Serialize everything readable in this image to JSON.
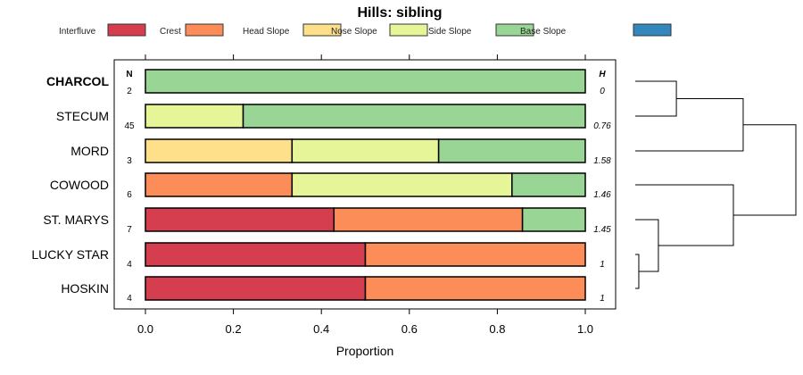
{
  "chart_data": {
    "type": "bar",
    "stacked": true,
    "orientation": "horizontal",
    "title": "Hills: sibling",
    "xlabel": "Proportion",
    "ylabel": "",
    "xlim": [
      0,
      1
    ],
    "x_ticks": [
      "0.0",
      "0.2",
      "0.4",
      "0.6",
      "0.8",
      "1.0"
    ],
    "x_tick_values": [
      0,
      0.2,
      0.4,
      0.6,
      0.8,
      1.0
    ],
    "legend_position": "top",
    "legend": [
      {
        "name": "Interfluve",
        "color": "#D53E4F"
      },
      {
        "name": "Crest",
        "color": "#FC8D59"
      },
      {
        "name": "Head Slope",
        "color": "#FEE08B"
      },
      {
        "name": "Nose Slope",
        "color": "#E6F598"
      },
      {
        "name": "Side Slope",
        "color": "#99D594"
      },
      {
        "name": "Base Slope",
        "color": "#3288BD"
      }
    ],
    "n_header": "N",
    "h_header": "H",
    "categories": [
      "CHARCOL",
      "STECUM",
      "MORD",
      "COWOOD",
      "ST. MARYS",
      "LUCKY STAR",
      "HOSKIN"
    ],
    "highlighted_category": "CHARCOL",
    "n": [
      "2",
      "45",
      "3",
      "6",
      "7",
      "4",
      "4"
    ],
    "h": [
      "0",
      "0.76",
      "1.58",
      "1.46",
      "1.45",
      "1",
      "1"
    ],
    "series": [
      {
        "name": "Interfluve",
        "values": [
          0,
          0,
          0,
          0,
          0.4286,
          0.5,
          0.5
        ]
      },
      {
        "name": "Crest",
        "values": [
          0,
          0,
          0,
          0.3333,
          0.4286,
          0.5,
          0.5
        ]
      },
      {
        "name": "Head Slope",
        "values": [
          0,
          0,
          0.3333,
          0,
          0,
          0,
          0
        ]
      },
      {
        "name": "Nose Slope",
        "values": [
          0,
          0.2222,
          0.3333,
          0.5,
          0,
          0,
          0
        ]
      },
      {
        "name": "Side Slope",
        "values": [
          1,
          0.7778,
          0.3333,
          0.1667,
          0.1429,
          0,
          0
        ]
      },
      {
        "name": "Base Slope",
        "values": [
          0,
          0,
          0,
          0,
          0,
          0,
          0
        ]
      }
    ],
    "dendrogram": {
      "merges": [
        {
          "a": "CHARCOL",
          "b": "STECUM",
          "height": 0.256,
          "id": "m1"
        },
        {
          "a": "m1",
          "b": "MORD",
          "height": 0.672,
          "id": "m2"
        },
        {
          "a": "LUCKY STAR",
          "b": "HOSKIN",
          "height": 0.022,
          "id": "m3"
        },
        {
          "a": "ST. MARYS",
          "b": "m3",
          "height": 0.144,
          "id": "m4"
        },
        {
          "a": "COWOOD",
          "b": "m4",
          "height": 0.611,
          "id": "m5"
        },
        {
          "a": "m2",
          "b": "m5",
          "height": 1.0,
          "id": "m6"
        }
      ]
    }
  }
}
